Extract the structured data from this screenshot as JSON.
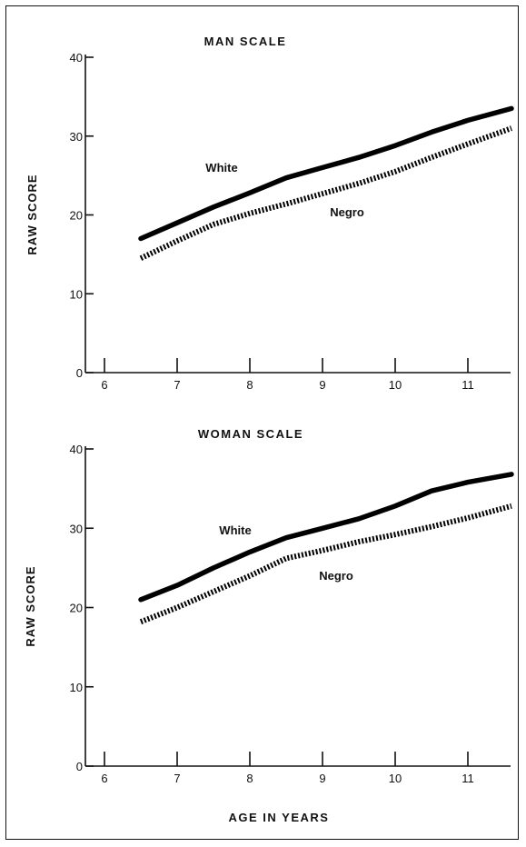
{
  "figure": {
    "xlabel": "AGE IN YEARS"
  },
  "chart_data": [
    {
      "type": "line",
      "title": "MAN SCALE",
      "xlabel": "AGE IN YEARS",
      "ylabel": "RAW SCORE",
      "xlim": [
        6,
        11.6
      ],
      "ylim": [
        0,
        40
      ],
      "xticks": [
        6,
        7,
        8,
        9,
        10,
        11
      ],
      "yticks": [
        0,
        10,
        20,
        30,
        40
      ],
      "grid": false,
      "series": [
        {
          "name": "White",
          "style": "solid",
          "color": "#000000",
          "x": [
            6.5,
            7,
            7.5,
            8,
            8.5,
            9,
            9.5,
            10,
            10.5,
            11,
            11.6
          ],
          "y": [
            17,
            19,
            21,
            22.8,
            24.7,
            26,
            27.3,
            28.8,
            30.5,
            32,
            33.5
          ]
        },
        {
          "name": "Negro",
          "style": "dotted",
          "color": "#000000",
          "x": [
            6.5,
            7,
            7.5,
            8,
            8.5,
            9,
            9.5,
            10,
            10.5,
            11,
            11.6
          ],
          "y": [
            14.5,
            16.7,
            18.8,
            20.2,
            21.4,
            22.7,
            24,
            25.5,
            27.3,
            29,
            31
          ]
        }
      ],
      "annotations": [
        "White",
        "Negro"
      ]
    },
    {
      "type": "line",
      "title": "WOMAN SCALE",
      "xlabel": "AGE IN YEARS",
      "ylabel": "RAW SCORE",
      "xlim": [
        6,
        11.6
      ],
      "ylim": [
        0,
        40
      ],
      "xticks": [
        6,
        7,
        8,
        9,
        10,
        11
      ],
      "yticks": [
        0,
        10,
        20,
        30,
        40
      ],
      "grid": false,
      "series": [
        {
          "name": "White",
          "style": "solid",
          "color": "#000000",
          "x": [
            6.5,
            7,
            7.5,
            8,
            8.5,
            9,
            9.5,
            10,
            10.5,
            11,
            11.6
          ],
          "y": [
            21,
            22.8,
            25,
            27,
            28.8,
            30,
            31.2,
            32.8,
            34.7,
            35.8,
            36.8
          ]
        },
        {
          "name": "Negro",
          "style": "dotted",
          "color": "#000000",
          "x": [
            6.5,
            7,
            7.5,
            8,
            8.5,
            9,
            9.5,
            10,
            10.5,
            11,
            11.6
          ],
          "y": [
            18.2,
            20,
            22,
            24,
            26.2,
            27.2,
            28.3,
            29.2,
            30.2,
            31.3,
            32.8
          ]
        }
      ],
      "annotations": [
        "White",
        "Negro"
      ]
    }
  ]
}
